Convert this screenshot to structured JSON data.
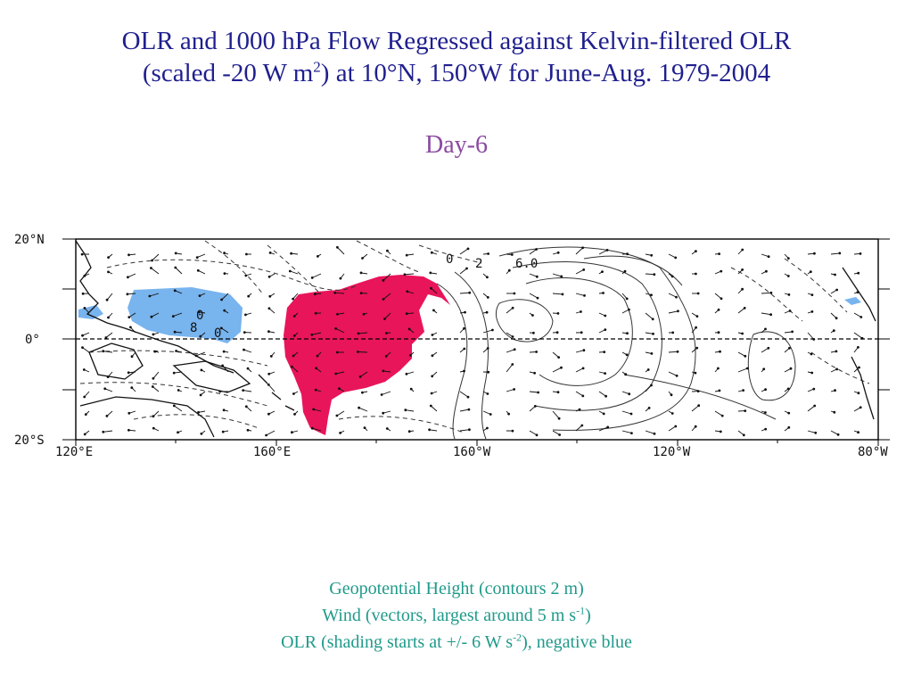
{
  "title": {
    "line1": "OLR and 1000 hPa Flow Regressed against Kelvin-filtered OLR",
    "line2_pre": "(scaled -20 W m",
    "line2_sup": "2",
    "line2_post": ") at 10°N, 150°W for June-Aug. 1979-2004"
  },
  "subtitle": "Day-6",
  "map": {
    "lat_labels": [
      "20°N",
      "0°",
      "20°S"
    ],
    "lon_labels": [
      "120°E",
      "160°E",
      "160°W",
      "120°W",
      "80°W"
    ],
    "contour_labels": [
      "2",
      "6.0",
      "0",
      "0",
      "8",
      "0"
    ],
    "colors": {
      "positive_olr": "#e8155a",
      "negative_olr": "#78b4ee",
      "contour": "#333333",
      "frame": "#000000"
    }
  },
  "caption": {
    "line1": "Geopotential Height (contours 2 m)",
    "line2_pre": "Wind (vectors, largest around 5 m s",
    "line2_sup": "-1",
    "line2_post": ")",
    "line3_pre": "OLR (shading starts at +/- 6 W s",
    "line3_sup": "-2",
    "line3_post": "), negative blue"
  }
}
